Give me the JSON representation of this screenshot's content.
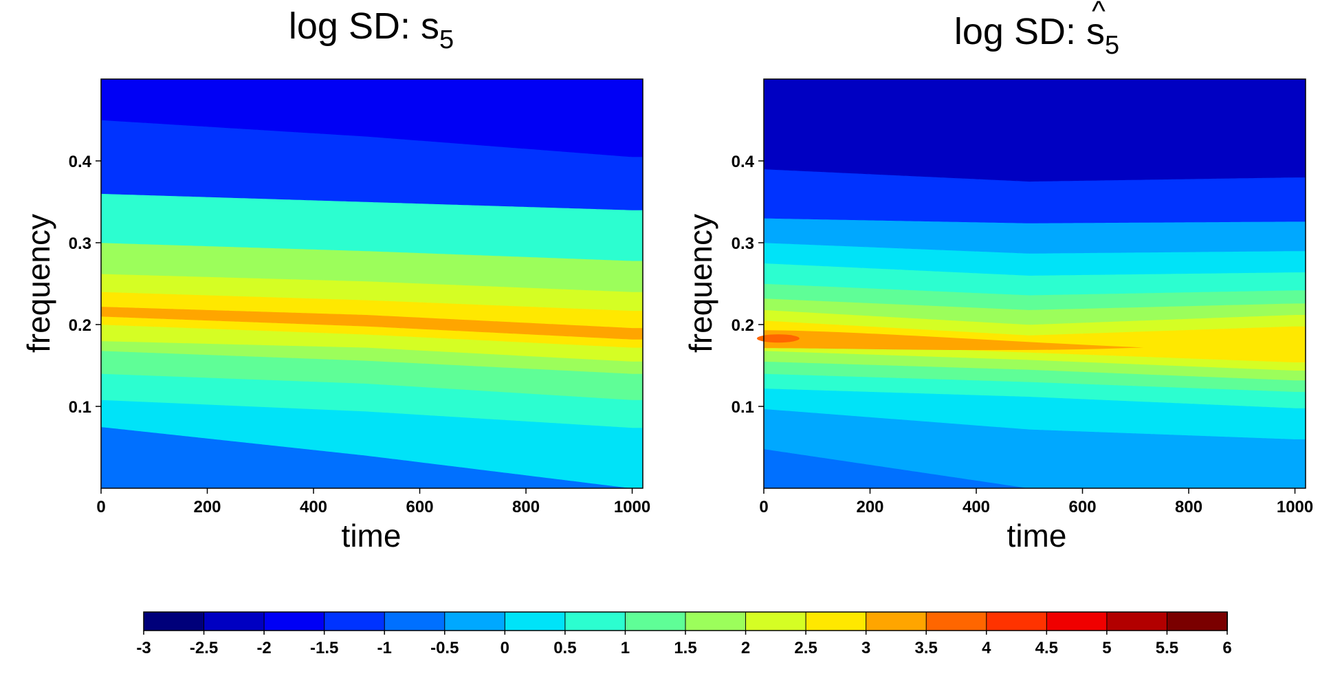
{
  "chart_data": [
    {
      "type": "heatmap",
      "title": {
        "main": "log SD: s",
        "sub": "5",
        "hat": false
      },
      "xlabel": "time",
      "ylabel": "frequency",
      "xlim": [
        0,
        1020
      ],
      "ylim": [
        0,
        0.5
      ],
      "xticks": [
        "0",
        "200",
        "400",
        "600",
        "800",
        "1000"
      ],
      "yticks": [
        "0.1",
        "0.2",
        "0.3",
        "0.4"
      ],
      "peak_frequency": {
        "time": [
          0,
          500,
          1000
        ],
        "frequency": [
          0.18,
          0.17,
          0.165
        ]
      },
      "field": {
        "description_of_levels": "filled contour of log spectral density over time and frequency",
        "boundaries_by_time": [
          {
            "time": 0,
            "freq_at_levels": [
              0.075,
              0.108,
              0.14,
              0.168,
              0.18,
              0.2,
              0.21,
              0.222,
              0.24,
              0.262,
              0.3,
              0.36,
              0.45
            ]
          },
          {
            "time": 500,
            "freq_at_levels": [
              0.04,
              0.094,
              0.128,
              0.156,
              0.172,
              0.188,
              0.198,
              0.212,
              0.23,
              0.253,
              0.29,
              0.35,
              0.43
            ]
          },
          {
            "time": 1000,
            "freq_at_levels": [
              0.0,
              0.074,
              0.108,
              0.14,
              0.155,
              0.172,
              0.182,
              0.196,
              0.217,
              0.24,
              0.278,
              0.34,
              0.405
            ]
          }
        ],
        "band_values": [
          -0.75,
          0.25,
          0.75,
          1.25,
          1.75,
          2.25,
          2.75,
          3.25,
          2.75,
          2.25,
          1.75,
          0.75,
          -1.25,
          -1.75,
          -2.25
        ]
      }
    },
    {
      "type": "heatmap",
      "title": {
        "main": "log SD: s",
        "sub": "5",
        "hat": true,
        "hat_symbol": "^"
      },
      "xlabel": "time",
      "ylabel": "frequency",
      "xlim": [
        0,
        1020
      ],
      "ylim": [
        0,
        0.5
      ],
      "xticks": [
        "0",
        "200",
        "400",
        "600",
        "800",
        "1000"
      ],
      "yticks": [
        "0.1",
        "0.2",
        "0.3",
        "0.4"
      ],
      "field": {
        "description_of_levels": "filled contour of estimated log spectral density over time and frequency",
        "boundaries_by_time": [
          {
            "time": 0,
            "freq_at_levels": [
              0.048,
              0.097,
              0.122,
              0.14,
              0.155,
              0.168,
              0.178,
              0.205,
              0.218,
              0.232,
              0.25,
              0.275,
              0.3,
              0.33,
              0.39
            ]
          },
          {
            "time": 500,
            "freq_at_levels": [
              0.0,
              0.072,
              0.112,
              0.13,
              0.145,
              0.157,
              0.166,
              0.187,
              0.2,
              0.218,
              0.236,
              0.26,
              0.287,
              0.324,
              0.375
            ]
          },
          {
            "time": 1000,
            "freq_at_levels": [
              0.0,
              0.06,
              0.098,
              0.118,
              0.132,
              0.144,
              0.154,
              0.198,
              0.212,
              0.226,
              0.242,
              0.264,
              0.29,
              0.326,
              0.38
            ]
          }
        ],
        "band_values": [
          -0.75,
          -0.25,
          0.25,
          0.75,
          1.25,
          1.75,
          2.25,
          2.75,
          2.25,
          1.75,
          1.25,
          0.75,
          0.25,
          -0.25,
          -1.25,
          -2.25
        ],
        "hot_spot": {
          "time": [
            0,
            80
          ],
          "frequency": 0.183,
          "value": 3.75
        },
        "ridge": {
          "time": [
            0,
            715
          ],
          "frequency": [
            0.183,
            0.172
          ],
          "value": 3.25
        }
      }
    }
  ],
  "colorbar": {
    "ticks": [
      "-3",
      "-2.5",
      "-2",
      "-1.5",
      "-1",
      "-0.5",
      "0",
      "0.5",
      "1",
      "1.5",
      "2",
      "2.5",
      "3",
      "3.5",
      "4",
      "4.5",
      "5",
      "5.5",
      "6"
    ],
    "breaks": [
      -3,
      -2.5,
      -2,
      -1.5,
      -1,
      -0.5,
      0,
      0.5,
      1,
      1.5,
      2,
      2.5,
      3,
      3.5,
      4,
      4.5,
      5,
      5.5,
      6
    ],
    "colors": [
      "#00007a",
      "#0000c2",
      "#0000f5",
      "#0033ff",
      "#0070ff",
      "#00a8ff",
      "#00e3f8",
      "#2cfed0",
      "#5ffe97",
      "#9cfe5b",
      "#d5fe24",
      "#ffe800",
      "#ffa500",
      "#ff6600",
      "#ff3300",
      "#f00000",
      "#b20000",
      "#7a0000"
    ]
  }
}
